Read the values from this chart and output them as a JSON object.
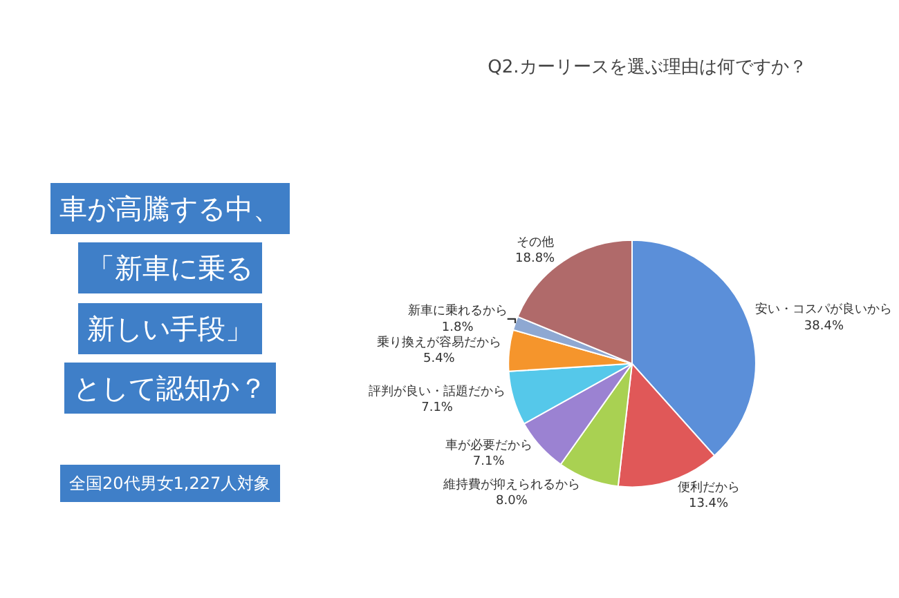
{
  "chart_data": {
    "type": "pie",
    "title": "Q2.カーリースを選ぶ理由は何ですか？",
    "categories": [
      "安い・コスパが良いから",
      "便利だから",
      "維持費が抑えられるから",
      "車が必要だから",
      "評判が良い・話題だから",
      "乗り換えが容易だから",
      "新車に乗れるから",
      "その他"
    ],
    "values": [
      38.4,
      13.4,
      8.0,
      7.1,
      7.1,
      5.4,
      1.8,
      18.8
    ],
    "value_labels": [
      "38.4%",
      "13.4%",
      "8.0%",
      "7.1%",
      "7.1%",
      "5.4%",
      "1.8%",
      "18.8%"
    ],
    "colors": [
      "#5b8fd9",
      "#e05858",
      "#a9d152",
      "#9b82d2",
      "#55c8ea",
      "#f5952c",
      "#8ea8d2",
      "#b06a6a"
    ],
    "legend": false,
    "annotations": [
      "車が高騰する中、",
      "「新車に乗る",
      "新しい手段」",
      "として認知か？",
      "全国20代男女1,227人対象"
    ]
  }
}
